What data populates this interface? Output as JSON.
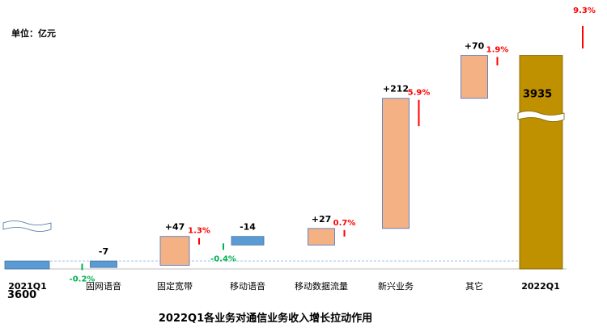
{
  "chart_data": {
    "type": "bar",
    "subtype": "waterfall",
    "title": "2022Q1各业务对通信业务收入增长拉动作用",
    "unit_label": "单位：亿元",
    "start": {
      "category": "2021Q1",
      "value": 3600,
      "label": "3600"
    },
    "end": {
      "category": "2022Q1",
      "value": 3935,
      "label": "3935",
      "pct_label": "9.3%",
      "pct_value": 9.3
    },
    "steps": [
      {
        "category": "固网语音",
        "delta": -7,
        "delta_label": "-7",
        "pct_label": "-0.2%",
        "pct_value": -0.2
      },
      {
        "category": "固定宽带",
        "delta": 47,
        "delta_label": "+47",
        "pct_label": "1.3%",
        "pct_value": 1.3
      },
      {
        "category": "移动语音",
        "delta": -14,
        "delta_label": "-14",
        "pct_label": "-0.4%",
        "pct_value": -0.4
      },
      {
        "category": "移动数据流量",
        "delta": 27,
        "delta_label": "+27",
        "pct_label": "0.7%",
        "pct_value": 0.7
      },
      {
        "category": "新兴业务",
        "delta": 212,
        "delta_label": "+212",
        "pct_label": "5.9%",
        "pct_value": 5.9
      },
      {
        "category": "其它",
        "delta": 70,
        "delta_label": "+70",
        "pct_label": "1.9%",
        "pct_value": 1.9
      }
    ],
    "colors": {
      "start_bar": "#5b9bd5",
      "end_bar": "#bf9000",
      "increase": "#f4b183",
      "decrease": "#5b9bd5",
      "positive_pct": "#ff0000",
      "negative_pct": "#00b050"
    },
    "axis_break": true,
    "grid": false,
    "legend": "none"
  }
}
